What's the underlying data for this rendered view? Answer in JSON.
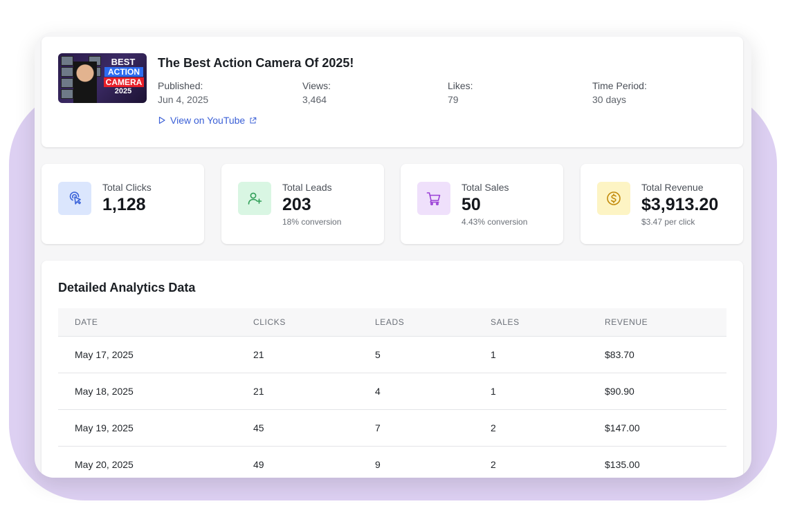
{
  "video": {
    "title": "The Best Action Camera Of 2025!",
    "thumbnail_text": [
      "BEST",
      "ACTION",
      "CAMERA",
      "2025"
    ],
    "meta": [
      {
        "label": "Published:",
        "value": "Jun 4, 2025"
      },
      {
        "label": "Views:",
        "value": "3,464"
      },
      {
        "label": "Likes:",
        "value": "79"
      },
      {
        "label": "Time Period:",
        "value": "30 days"
      }
    ],
    "link_label": "View on YouTube",
    "link_icon": "play-outline-icon",
    "external_icon": "external-link-icon"
  },
  "stats": [
    {
      "label": "Total Clicks",
      "value": "1,128",
      "sub": "",
      "icon": "click-pointer-icon",
      "color": "#3b63d9",
      "bg": "#dbe6fd"
    },
    {
      "label": "Total Leads",
      "value": "203",
      "sub": "18% conversion",
      "icon": "user-plus-icon",
      "color": "#2f9e57",
      "bg": "#d9f6e3"
    },
    {
      "label": "Total Sales",
      "value": "50",
      "sub": "4.43% conversion",
      "icon": "shopping-cart-icon",
      "color": "#9a3fd6",
      "bg": "#efe0fb"
    },
    {
      "label": "Total Revenue",
      "value": "$3,913.20",
      "sub": "$3.47 per click",
      "icon": "dollar-circle-icon",
      "color": "#c28a0b",
      "bg": "#fdf4c4"
    }
  ],
  "table": {
    "title": "Detailed Analytics Data",
    "columns": [
      "DATE",
      "CLICKS",
      "LEADS",
      "SALES",
      "REVENUE"
    ],
    "rows": [
      [
        "May 17, 2025",
        "21",
        "5",
        "1",
        "$83.70"
      ],
      [
        "May 18, 2025",
        "21",
        "4",
        "1",
        "$90.90"
      ],
      [
        "May 19, 2025",
        "45",
        "7",
        "2",
        "$147.00"
      ],
      [
        "May 20, 2025",
        "49",
        "9",
        "2",
        "$135.00"
      ]
    ]
  }
}
